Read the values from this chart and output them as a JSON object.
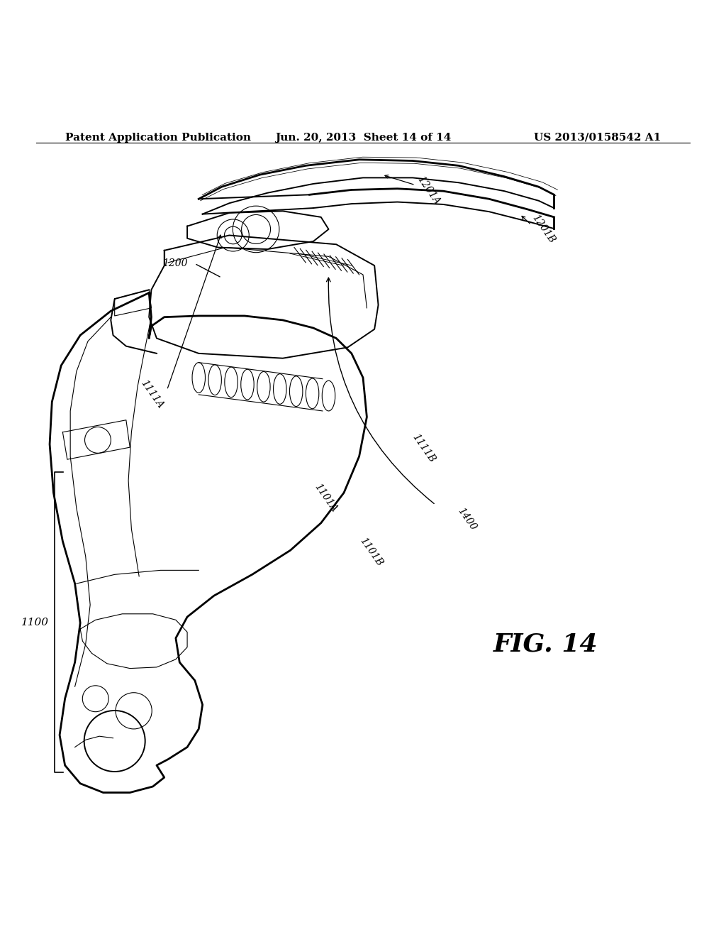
{
  "background_color": "#ffffff",
  "header_left": "Patent Application Publication",
  "header_center": "Jun. 20, 2013  Sheet 14 of 14",
  "header_right": "US 2013/0158542 A1",
  "figure_label": "FIG. 14",
  "header_fontsize": 11,
  "label_fontsize": 10,
  "fig_label_fontsize": 26
}
